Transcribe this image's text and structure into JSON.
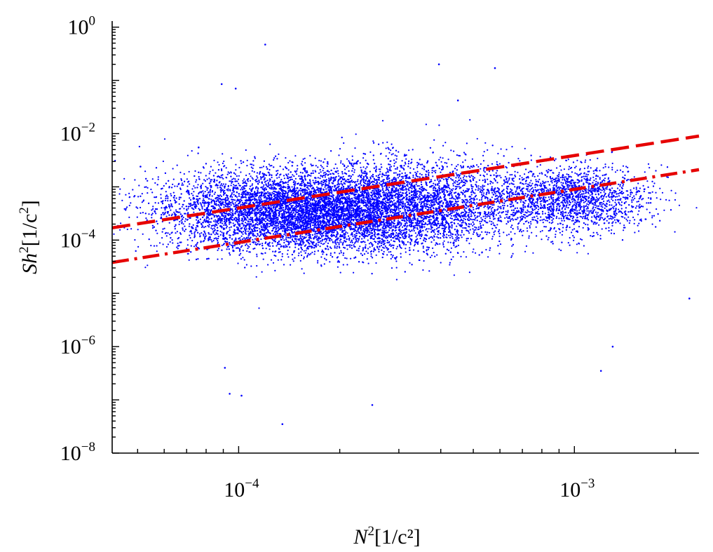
{
  "chart_data": {
    "type": "scatter",
    "title": "",
    "xscale": "log",
    "yscale": "log",
    "xlim": [
      4.2e-05,
      0.00235
    ],
    "ylim": [
      1e-08,
      1.3
    ],
    "x_ticks": [
      {
        "value": 0.0001,
        "base": "10",
        "exp": "−4"
      },
      {
        "value": 0.001,
        "base": "10",
        "exp": "−3"
      }
    ],
    "y_ticks": [
      {
        "value": 1e-08,
        "base": "10",
        "exp": "−8"
      },
      {
        "value": 1e-06,
        "base": "10",
        "exp": "−6"
      },
      {
        "value": 0.0001,
        "base": "10",
        "exp": "−4"
      },
      {
        "value": 0.01,
        "base": "10",
        "exp": "−2"
      },
      {
        "value": 1,
        "base": "10",
        "exp": "0"
      }
    ],
    "xlabel": {
      "italic": "N",
      "sup": "2",
      "rest": "[1/c²]"
    },
    "ylabel": {
      "italic": "Sh",
      "sup": "2",
      "rest": "[1/c",
      "sup2": "2",
      "close": "]"
    },
    "series": [
      {
        "name": "observations",
        "kind": "points",
        "color": "#0000ff",
        "n_points": 13000,
        "clusters": [
          {
            "x_center": 0.00015,
            "y_center": 0.00035,
            "x_spread_dex": 0.2,
            "y_spread_dex": 0.38,
            "weight": 0.55
          },
          {
            "x_center": 0.00034,
            "y_center": 0.00045,
            "x_spread_dex": 0.18,
            "y_spread_dex": 0.42,
            "weight": 0.3
          },
          {
            "x_center": 0.001,
            "y_center": 0.0006,
            "x_spread_dex": 0.11,
            "y_spread_dex": 0.3,
            "weight": 0.15
          }
        ],
        "outliers": [
          {
            "x": 0.00012,
            "y": 0.47
          },
          {
            "x": 0.000395,
            "y": 0.2
          },
          {
            "x": 0.00058,
            "y": 0.17
          },
          {
            "x": 8.9e-05,
            "y": 0.085
          },
          {
            "x": 9.8e-05,
            "y": 0.07
          },
          {
            "x": 0.00045,
            "y": 0.042
          },
          {
            "x": 7.6e-05,
            "y": 0.0055
          },
          {
            "x": 5.1e-05,
            "y": 0.0024
          },
          {
            "x": 9.1e-05,
            "y": 4e-07
          },
          {
            "x": 9.4e-05,
            "y": 1.3e-07
          },
          {
            "x": 0.000102,
            "y": 1.2e-07
          },
          {
            "x": 0.000135,
            "y": 3.5e-08
          },
          {
            "x": 0.00025,
            "y": 8e-08
          },
          {
            "x": 0.0012,
            "y": 3.5e-07
          },
          {
            "x": 0.0013,
            "y": 1e-06
          },
          {
            "x": 0.0022,
            "y": 8e-06
          }
        ]
      },
      {
        "name": "upper-fit",
        "kind": "line",
        "style": "dashed",
        "color": "#e60000",
        "x": [
          4.2e-05,
          0.00235
        ],
        "y": [
          0.00017,
          0.009
        ]
      },
      {
        "name": "lower-fit",
        "kind": "line",
        "style": "dashdot",
        "color": "#e60000",
        "x": [
          4.2e-05,
          0.00235
        ],
        "y": [
          3.8e-05,
          0.0021
        ]
      }
    ],
    "grid": false,
    "legend": "none"
  }
}
